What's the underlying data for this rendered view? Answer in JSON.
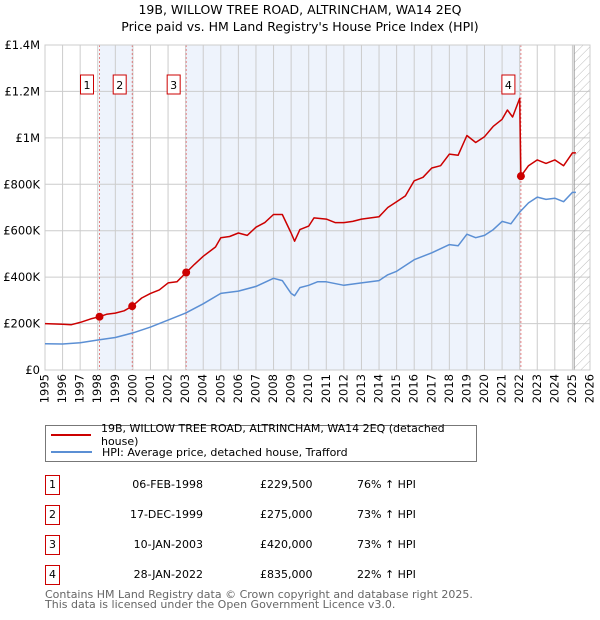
{
  "chart_data": {
    "type": "line",
    "title": "19B, WILLOW TREE ROAD, ALTRINCHAM, WA14 2EQ",
    "subtitle": "Price paid vs. HM Land Registry's House Price Index (HPI)",
    "xlim": [
      1995,
      2026
    ],
    "ylim": [
      0,
      1400000
    ],
    "x_ticks": [
      "1995",
      "1996",
      "1997",
      "1998",
      "1999",
      "2000",
      "2001",
      "2002",
      "2003",
      "2004",
      "2005",
      "2006",
      "2007",
      "2008",
      "2009",
      "2010",
      "2011",
      "2012",
      "2013",
      "2014",
      "2015",
      "2016",
      "2017",
      "2018",
      "2019",
      "2020",
      "2021",
      "2022",
      "2023",
      "2024",
      "2025",
      "2026"
    ],
    "y_ticks": [
      {
        "v": 0,
        "label": "£0"
      },
      {
        "v": 200000,
        "label": "£200K"
      },
      {
        "v": 400000,
        "label": "£400K"
      },
      {
        "v": 600000,
        "label": "£600K"
      },
      {
        "v": 800000,
        "label": "£800K"
      },
      {
        "v": 1000000,
        "label": "£1M"
      },
      {
        "v": 1200000,
        "label": "£1.2M"
      },
      {
        "v": 1400000,
        "label": "£1.4M"
      }
    ],
    "grid": true,
    "future_hatch_from": 2025.1,
    "shaded_ranges": [
      [
        1998.1,
        1999.96
      ],
      [
        2003.03,
        2022.07
      ]
    ],
    "series": [
      {
        "name": "19B, WILLOW TREE ROAD, ALTRINCHAM, WA14 2EQ (detached house)",
        "color": "#cc0000",
        "points": [
          [
            1995,
            200000
          ],
          [
            1996,
            197000
          ],
          [
            1996.5,
            195000
          ],
          [
            1997,
            205000
          ],
          [
            1997.6,
            220000
          ],
          [
            1998.1,
            229500
          ],
          [
            1998.5,
            240000
          ],
          [
            1999,
            245000
          ],
          [
            1999.5,
            255000
          ],
          [
            1999.96,
            275000
          ],
          [
            2000.5,
            310000
          ],
          [
            2001,
            330000
          ],
          [
            2001.5,
            345000
          ],
          [
            2002,
            375000
          ],
          [
            2002.5,
            380000
          ],
          [
            2003.03,
            420000
          ],
          [
            2003.5,
            455000
          ],
          [
            2004,
            490000
          ],
          [
            2004.7,
            530000
          ],
          [
            2005,
            570000
          ],
          [
            2005.5,
            575000
          ],
          [
            2006,
            590000
          ],
          [
            2006.5,
            580000
          ],
          [
            2007,
            615000
          ],
          [
            2007.5,
            635000
          ],
          [
            2008,
            670000
          ],
          [
            2008.5,
            670000
          ],
          [
            2009,
            590000
          ],
          [
            2009.2,
            555000
          ],
          [
            2009.5,
            605000
          ],
          [
            2010,
            620000
          ],
          [
            2010.3,
            655000
          ],
          [
            2011,
            650000
          ],
          [
            2011.5,
            635000
          ],
          [
            2012,
            635000
          ],
          [
            2012.5,
            640000
          ],
          [
            2013,
            650000
          ],
          [
            2014,
            660000
          ],
          [
            2014.5,
            700000
          ],
          [
            2015,
            725000
          ],
          [
            2015.5,
            750000
          ],
          [
            2016,
            815000
          ],
          [
            2016.5,
            830000
          ],
          [
            2017,
            870000
          ],
          [
            2017.5,
            880000
          ],
          [
            2018,
            930000
          ],
          [
            2018.5,
            925000
          ],
          [
            2019,
            1010000
          ],
          [
            2019.5,
            980000
          ],
          [
            2020,
            1005000
          ],
          [
            2020.5,
            1050000
          ],
          [
            2021,
            1080000
          ],
          [
            2021.3,
            1120000
          ],
          [
            2021.6,
            1090000
          ],
          [
            2022.0,
            1170000
          ],
          [
            2022.07,
            835000
          ],
          [
            2022.5,
            880000
          ],
          [
            2023,
            905000
          ],
          [
            2023.5,
            890000
          ],
          [
            2024,
            905000
          ],
          [
            2024.5,
            880000
          ],
          [
            2025,
            935000
          ],
          [
            2025.2,
            935000
          ]
        ]
      },
      {
        "name": "HPI: Average price, detached house, Trafford",
        "color": "#5b8fd4",
        "points": [
          [
            1995,
            113000
          ],
          [
            1996,
            112000
          ],
          [
            1997,
            117000
          ],
          [
            1998.1,
            130000
          ],
          [
            1999,
            140000
          ],
          [
            2000,
            160000
          ],
          [
            2001,
            185000
          ],
          [
            2002,
            215000
          ],
          [
            2003,
            245000
          ],
          [
            2004,
            285000
          ],
          [
            2005,
            330000
          ],
          [
            2006,
            340000
          ],
          [
            2007,
            360000
          ],
          [
            2008,
            395000
          ],
          [
            2008.5,
            385000
          ],
          [
            2009,
            330000
          ],
          [
            2009.2,
            320000
          ],
          [
            2009.5,
            355000
          ],
          [
            2010,
            365000
          ],
          [
            2010.5,
            380000
          ],
          [
            2011,
            380000
          ],
          [
            2012,
            365000
          ],
          [
            2013,
            375000
          ],
          [
            2014,
            385000
          ],
          [
            2014.5,
            410000
          ],
          [
            2015,
            425000
          ],
          [
            2016,
            475000
          ],
          [
            2017,
            505000
          ],
          [
            2018,
            540000
          ],
          [
            2018.5,
            535000
          ],
          [
            2019,
            585000
          ],
          [
            2019.5,
            570000
          ],
          [
            2020,
            580000
          ],
          [
            2020.5,
            605000
          ],
          [
            2021,
            640000
          ],
          [
            2021.5,
            630000
          ],
          [
            2022,
            680000
          ],
          [
            2022.5,
            720000
          ],
          [
            2023,
            745000
          ],
          [
            2023.5,
            735000
          ],
          [
            2024,
            740000
          ],
          [
            2024.5,
            725000
          ],
          [
            2025,
            765000
          ],
          [
            2025.2,
            765000
          ]
        ]
      }
    ],
    "sales": [
      {
        "label": "1",
        "x": 1998.1,
        "price": 229500,
        "date": "06-FEB-1998",
        "price_text": "£229,500",
        "hpi_text": "76% ↑ HPI"
      },
      {
        "label": "2",
        "x": 1999.96,
        "price": 275000,
        "date": "17-DEC-1999",
        "price_text": "£275,000",
        "hpi_text": "73% ↑ HPI"
      },
      {
        "label": "3",
        "x": 2003.03,
        "price": 420000,
        "date": "10-JAN-2003",
        "price_text": "£420,000",
        "hpi_text": "73% ↑ HPI"
      },
      {
        "label": "4",
        "x": 2022.07,
        "price": 835000,
        "date": "28-JAN-2022",
        "price_text": "£835,000",
        "hpi_text": "22% ↑ HPI"
      }
    ]
  },
  "legend": {
    "property": "19B, WILLOW TREE ROAD, ALTRINCHAM, WA14 2EQ (detached house)",
    "hpi": "HPI: Average price, detached house, Trafford"
  },
  "footer": {
    "line1": "Contains HM Land Registry data © Crown copyright and database right 2025.",
    "line2": "This data is licensed under the Open Government Licence v3.0."
  }
}
